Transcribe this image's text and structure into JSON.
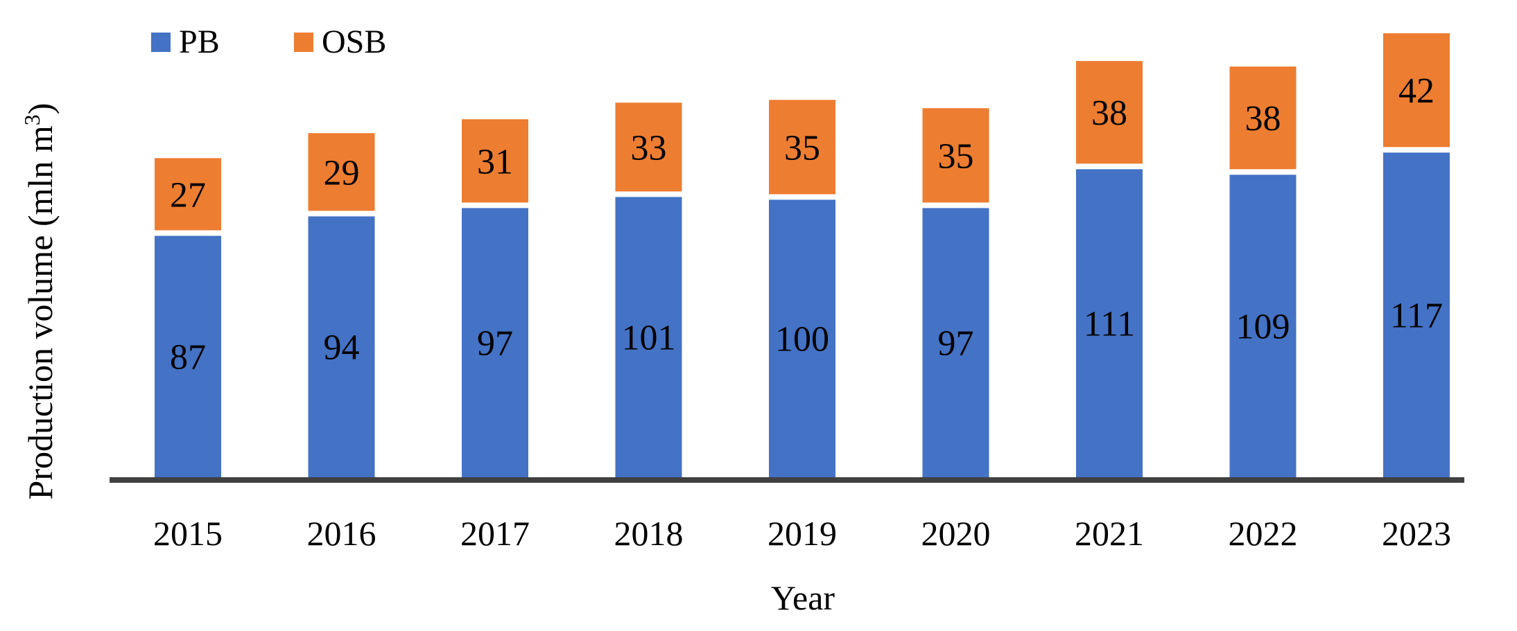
{
  "chart_data": {
    "type": "bar",
    "stacked": true,
    "categories": [
      "2015",
      "2016",
      "2017",
      "2018",
      "2019",
      "2020",
      "2021",
      "2022",
      "2023"
    ],
    "series": [
      {
        "name": "PB",
        "color": "#4472C4",
        "values": [
          87,
          94,
          97,
          101,
          100,
          97,
          111,
          109,
          117
        ]
      },
      {
        "name": "OSB",
        "color": "#ED7D31",
        "values": [
          27,
          29,
          31,
          33,
          35,
          35,
          38,
          38,
          42
        ]
      }
    ],
    "xlabel": "Year",
    "ylabel": "Production volume (mln m",
    "ylabel_superscript": "3",
    "ylabel_suffix": ")",
    "ylim": [
      0,
      162
    ],
    "grid": false,
    "legend": "top-left",
    "axis_color": "#404040"
  }
}
